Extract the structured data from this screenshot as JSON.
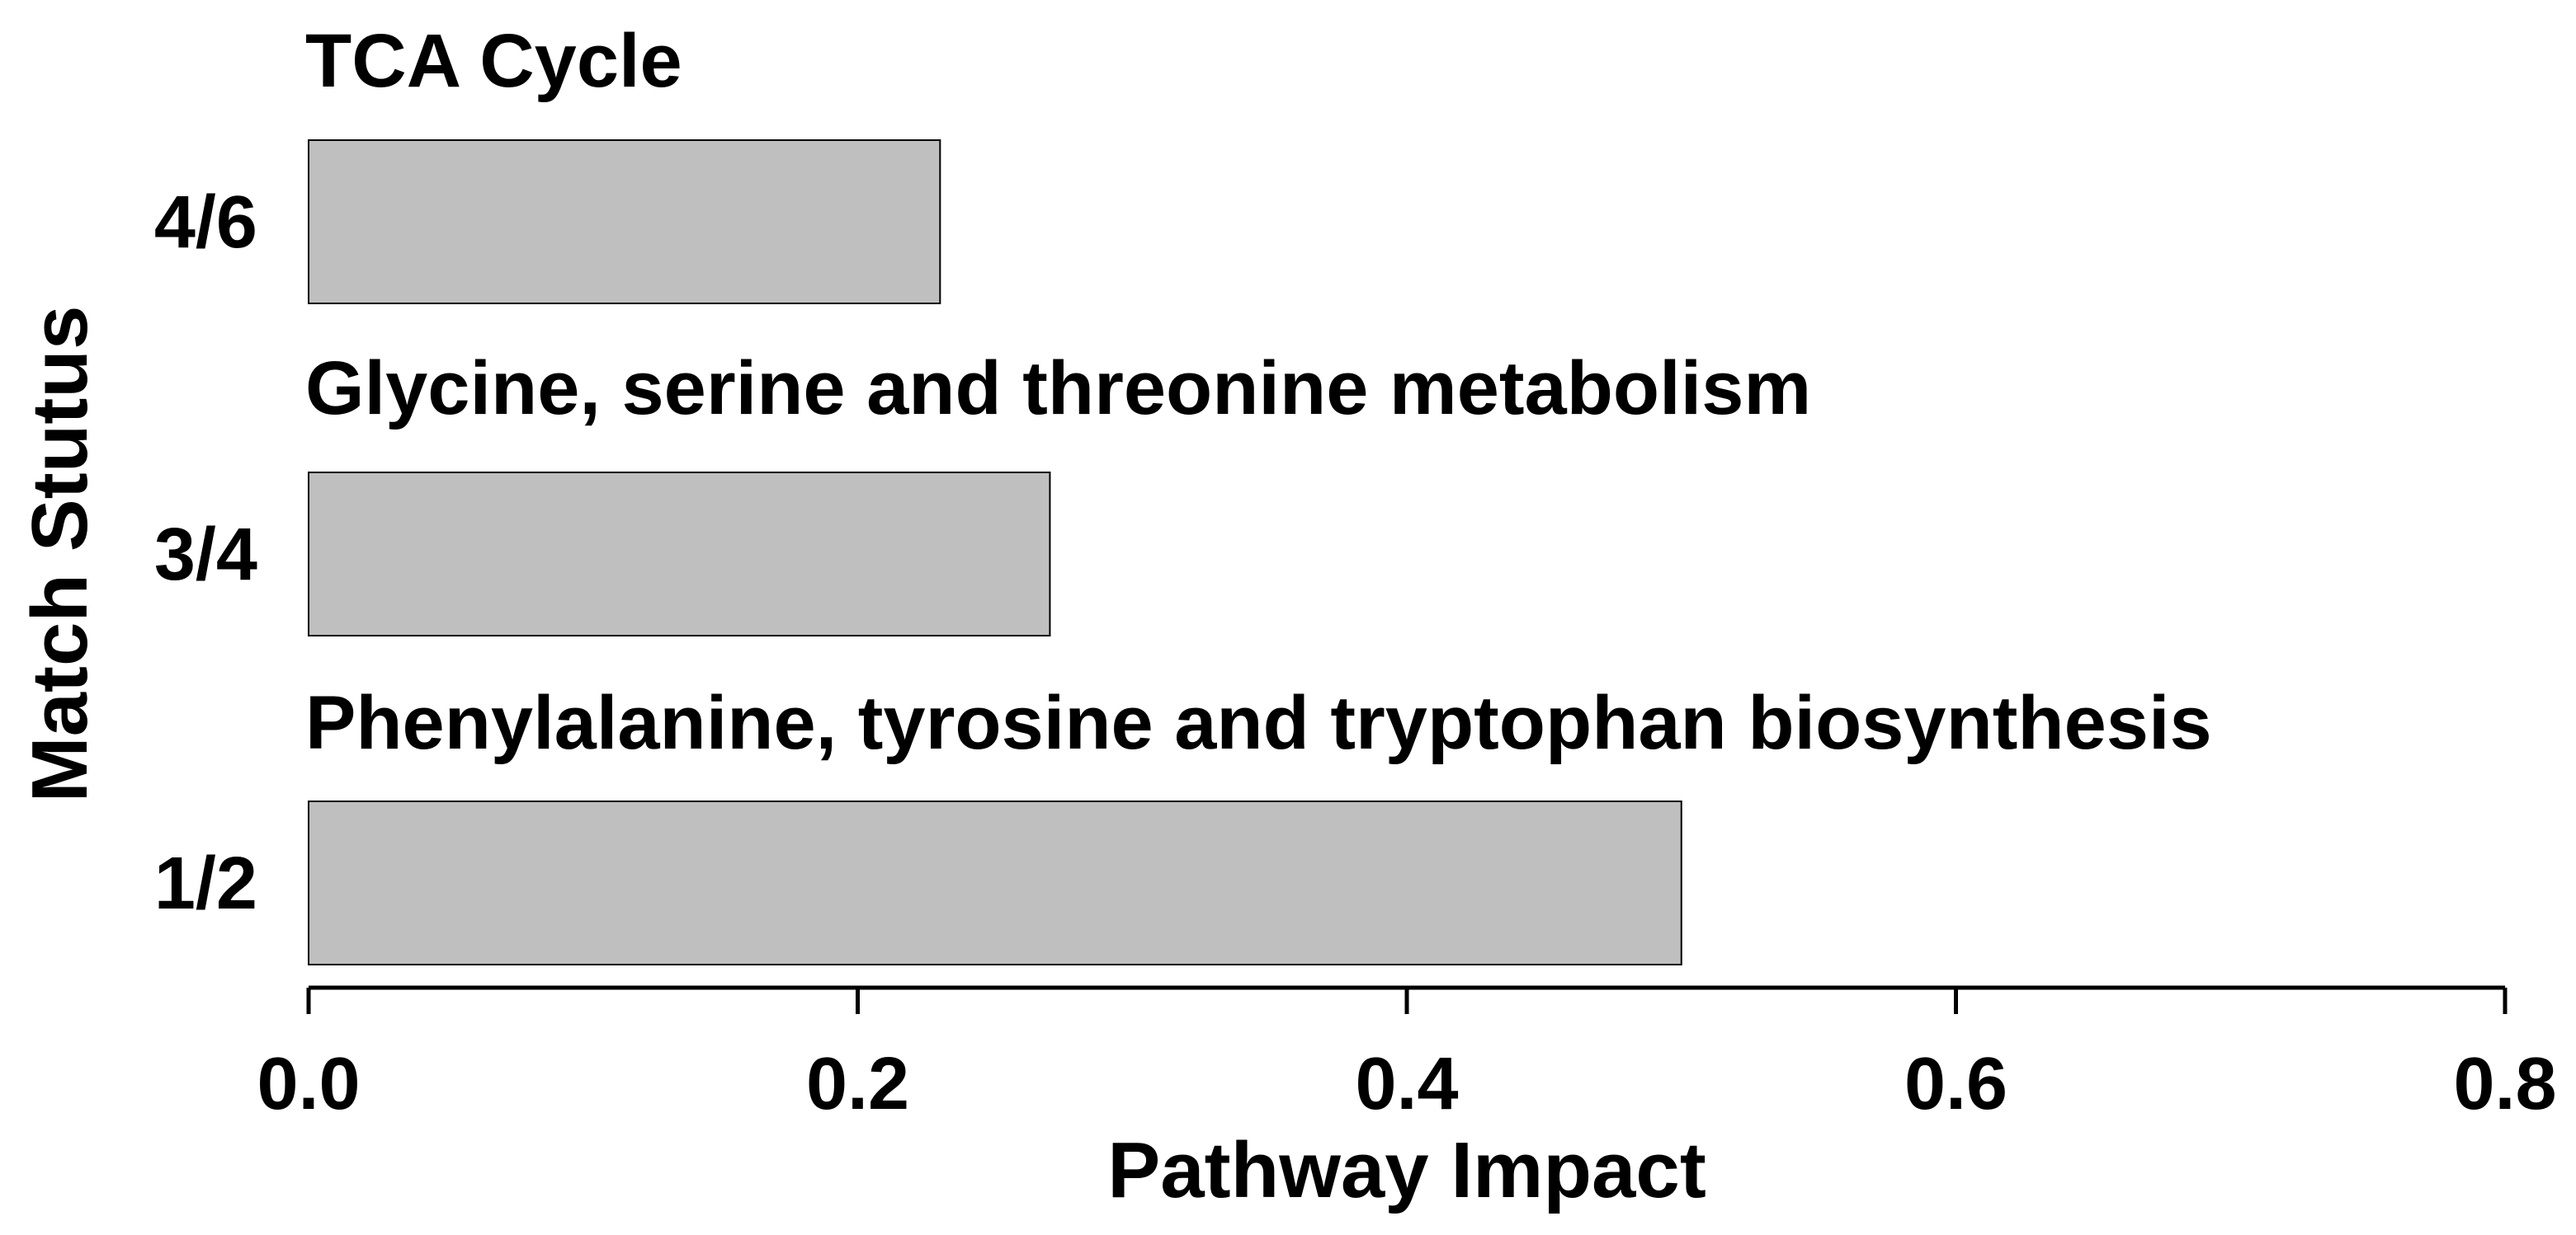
{
  "chart_data": {
    "type": "bar",
    "orientation": "horizontal",
    "categories": [
      "4/6",
      "3/4",
      "1/2"
    ],
    "pathways": [
      "TCA Cycle",
      "Glycine, serine and threonine metabolism",
      "Phenylalanine, tyrosine and tryptophan biosynthesis"
    ],
    "values": [
      0.23,
      0.27,
      0.5
    ],
    "xlabel": "Pathway Impact",
    "ylabel": "Match Stutus",
    "xlim": [
      0,
      0.8
    ],
    "xticks": [
      "0.0",
      "0.2",
      "0.4",
      "0.6",
      "0.8"
    ],
    "grid": false,
    "bar_color": "#bfbfbf",
    "bar_edge_color": "#000000"
  }
}
